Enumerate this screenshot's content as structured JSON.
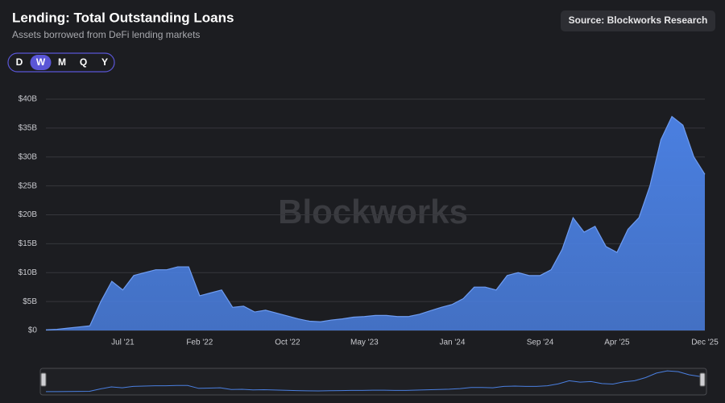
{
  "ui": {
    "periods": [
      "D",
      "W",
      "M",
      "Q",
      "Y"
    ],
    "selected_period": "W",
    "source": "Source: Blockworks Research",
    "watermark": "Blockworks"
  },
  "chart_data": {
    "type": "area",
    "title": "Lending: Total Outstanding Loans",
    "subtitle": "Assets borrowed from DeFi lending markets",
    "categories": [
      null,
      null,
      null,
      null,
      null,
      null,
      null,
      "Jul '21",
      null,
      null,
      null,
      null,
      null,
      null,
      "Feb '22",
      null,
      null,
      null,
      null,
      null,
      null,
      null,
      "Oct '22",
      null,
      null,
      null,
      null,
      null,
      null,
      "May '23",
      null,
      null,
      null,
      null,
      null,
      null,
      null,
      "Jan '24",
      null,
      null,
      null,
      null,
      null,
      null,
      null,
      "Sep '24",
      null,
      null,
      null,
      null,
      null,
      null,
      "Apr '25",
      null,
      null,
      null,
      null,
      null,
      null,
      null,
      "Dec '25"
    ],
    "series": [
      {
        "name": "Total Outstanding Loans",
        "color": "#4a7fe0",
        "values": [
          0.1,
          0.2,
          0.4,
          0.6,
          0.8,
          5.0,
          8.5,
          7.0,
          9.5,
          10,
          10.5,
          10.5,
          11,
          11,
          6,
          6.5,
          7,
          4,
          4.2,
          3.2,
          3.5,
          3.0,
          2.5,
          2.0,
          1.6,
          1.5,
          1.8,
          2.0,
          2.3,
          2.4,
          2.6,
          2.6,
          2.4,
          2.4,
          2.8,
          3.4,
          4.0,
          4.5,
          5.5,
          7.5,
          7.5,
          7.0,
          9.5,
          10,
          9.5,
          9.5,
          10.5,
          14,
          19.5,
          17,
          18,
          14.5,
          13.5,
          17.5,
          19.5,
          25,
          33,
          37,
          35.5,
          30,
          27
        ]
      }
    ],
    "ylim": [
      0,
      40
    ],
    "yticks": [
      {
        "value": 0,
        "label": "$0"
      },
      {
        "value": 5,
        "label": "$5B"
      },
      {
        "value": 10,
        "label": "$10B"
      },
      {
        "value": 15,
        "label": "$15B"
      },
      {
        "value": 20,
        "label": "$20B"
      },
      {
        "value": 25,
        "label": "$25B"
      },
      {
        "value": 30,
        "label": "$30B"
      },
      {
        "value": 35,
        "label": "$35B"
      },
      {
        "value": 40,
        "label": "$40B"
      }
    ],
    "grid": true
  }
}
